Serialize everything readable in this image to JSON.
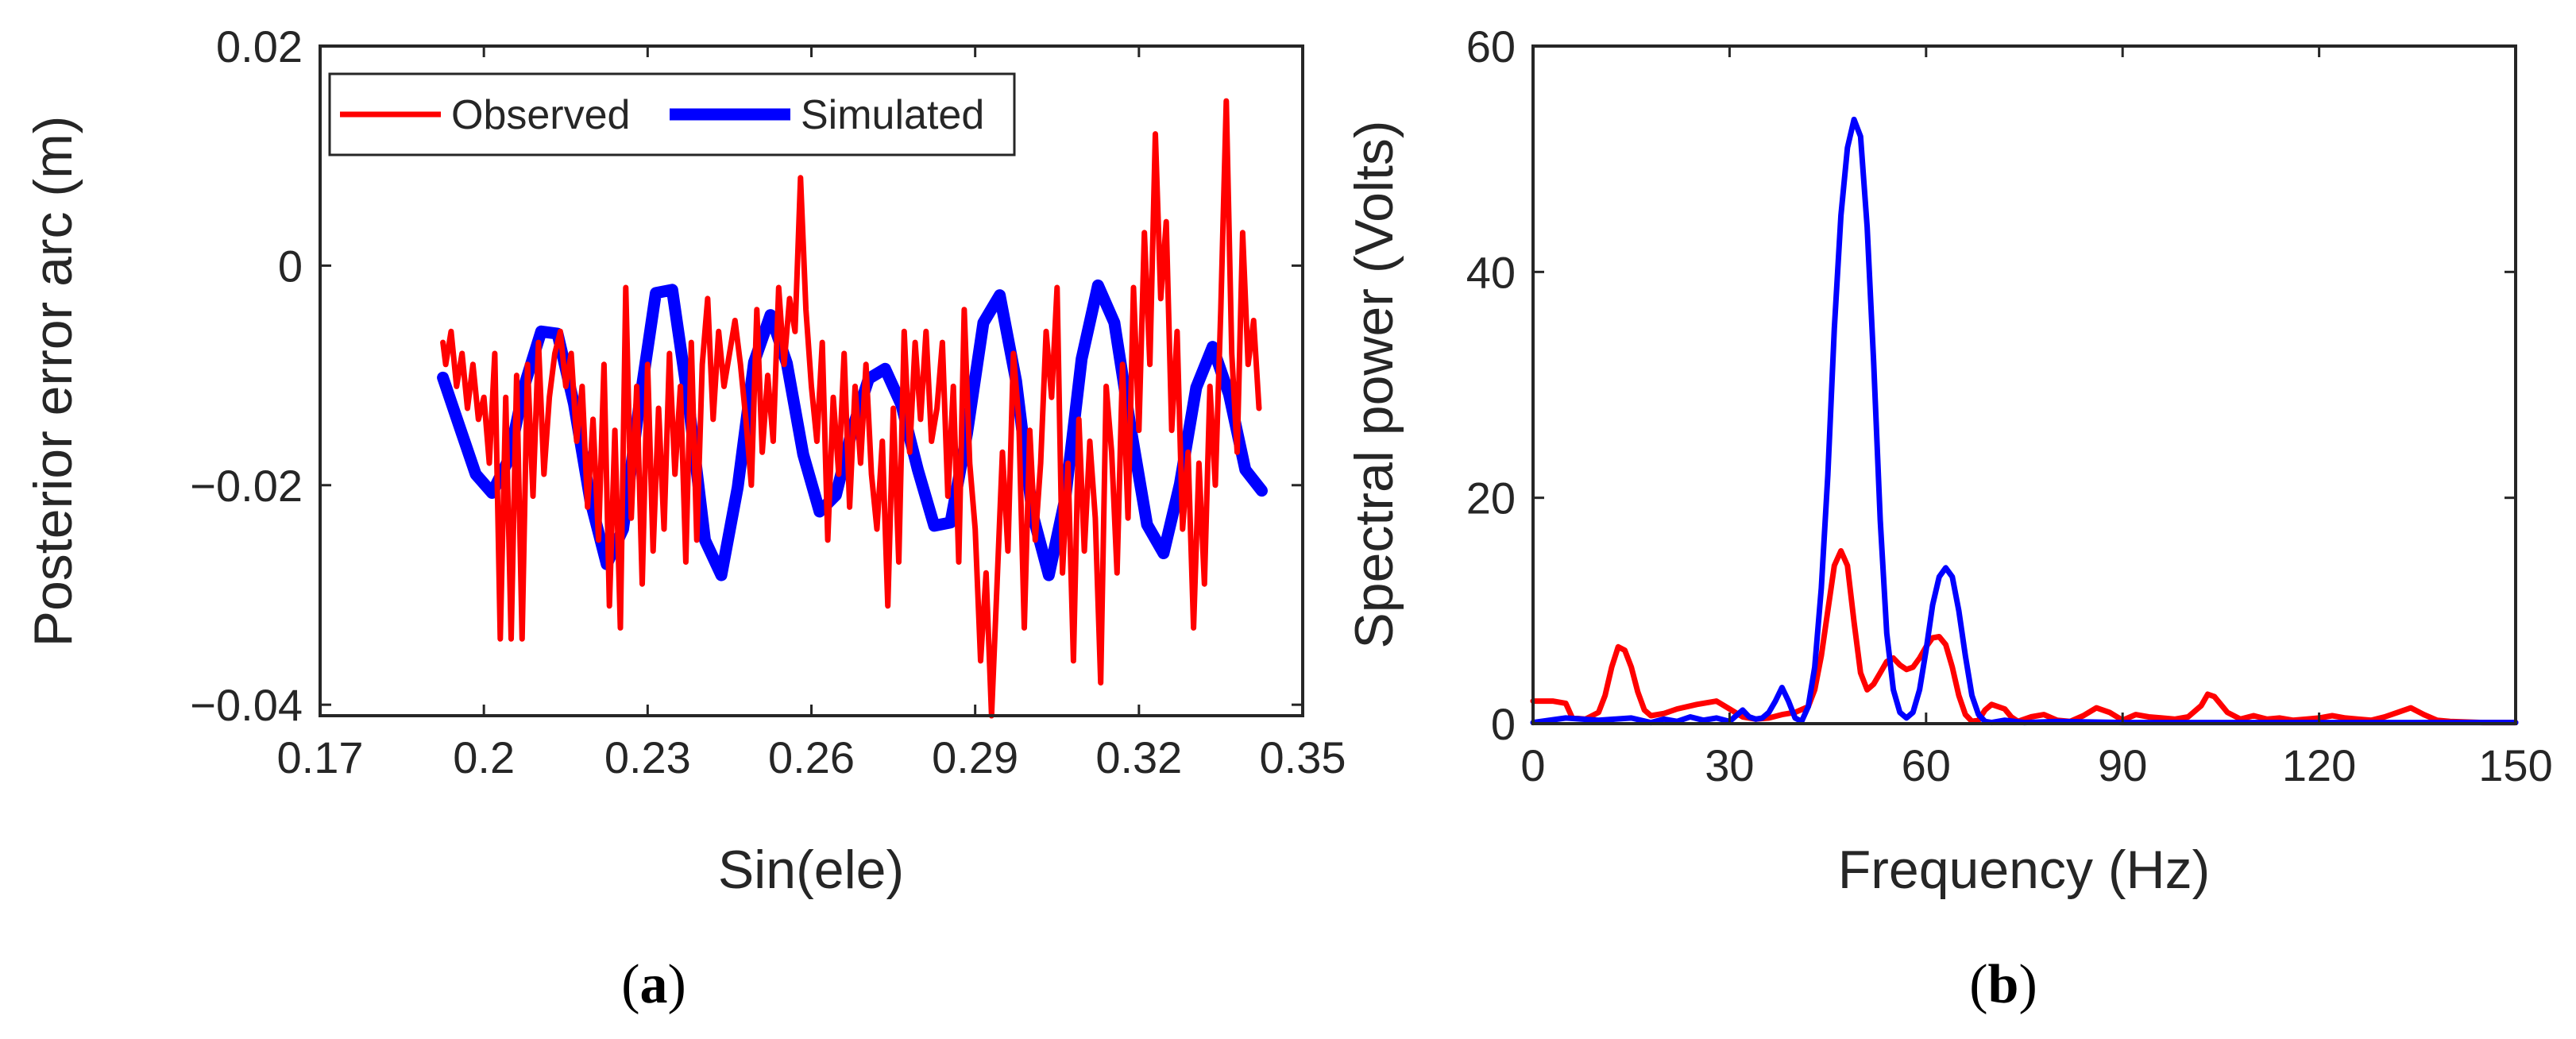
{
  "chart_data": [
    {
      "type": "line",
      "panel_label": {
        "open": "(",
        "letter": "a",
        "close": ")"
      },
      "xlabel": "Sin(ele)",
      "ylabel": "Posterior error arc (m)",
      "xlim": [
        0.17,
        0.35
      ],
      "ylim": [
        -0.041,
        0.02
      ],
      "xticks": [
        0.17,
        0.2,
        0.23,
        0.26,
        0.29,
        0.32,
        0.35
      ],
      "xtick_labels": [
        "0.17",
        "0.2",
        "0.23",
        "0.26",
        "0.29",
        "0.32",
        "0.35"
      ],
      "yticks": [
        -0.04,
        -0.02,
        0,
        0.02
      ],
      "ytick_labels": [
        "−0.04",
        "−0.02",
        "0",
        "0.02"
      ],
      "grid": false,
      "legend": {
        "location": "top-left",
        "orientation": "horizontal"
      },
      "series": [
        {
          "name": "Observed",
          "color": "#ff0000",
          "x": [
            0.1925,
            0.193,
            0.194,
            0.195,
            0.196,
            0.197,
            0.198,
            0.199,
            0.2,
            0.201,
            0.202,
            0.203,
            0.204,
            0.205,
            0.206,
            0.207,
            0.208,
            0.209,
            0.21,
            0.211,
            0.212,
            0.213,
            0.214,
            0.215,
            0.216,
            0.217,
            0.218,
            0.219,
            0.22,
            0.221,
            0.222,
            0.223,
            0.224,
            0.225,
            0.226,
            0.227,
            0.228,
            0.229,
            0.23,
            0.231,
            0.232,
            0.233,
            0.234,
            0.235,
            0.236,
            0.237,
            0.238,
            0.239,
            0.24,
            0.241,
            0.242,
            0.243,
            0.244,
            0.245,
            0.246,
            0.247,
            0.248,
            0.249,
            0.25,
            0.251,
            0.252,
            0.253,
            0.254,
            0.255,
            0.256,
            0.257,
            0.258,
            0.259,
            0.26,
            0.261,
            0.262,
            0.263,
            0.264,
            0.265,
            0.266,
            0.267,
            0.268,
            0.269,
            0.27,
            0.271,
            0.272,
            0.273,
            0.274,
            0.275,
            0.276,
            0.277,
            0.278,
            0.279,
            0.28,
            0.281,
            0.282,
            0.283,
            0.284,
            0.285,
            0.286,
            0.287,
            0.288,
            0.289,
            0.29,
            0.291,
            0.292,
            0.293,
            0.294,
            0.295,
            0.296,
            0.297,
            0.298,
            0.299,
            0.3,
            0.301,
            0.302,
            0.303,
            0.304,
            0.305,
            0.306,
            0.307,
            0.308,
            0.309,
            0.31,
            0.311,
            0.312,
            0.313,
            0.314,
            0.315,
            0.316,
            0.317,
            0.318,
            0.319,
            0.32,
            0.321,
            0.322,
            0.323,
            0.324,
            0.325,
            0.326,
            0.327,
            0.328,
            0.329,
            0.33,
            0.331,
            0.332,
            0.333,
            0.334,
            0.335,
            0.336,
            0.337,
            0.338,
            0.339,
            0.34,
            0.341,
            0.342
          ],
          "y": [
            -0.007,
            -0.009,
            -0.006,
            -0.011,
            -0.008,
            -0.013,
            -0.009,
            -0.014,
            -0.012,
            -0.018,
            -0.008,
            -0.034,
            -0.012,
            -0.034,
            -0.01,
            -0.034,
            -0.009,
            -0.021,
            -0.007,
            -0.019,
            -0.012,
            -0.008,
            -0.006,
            -0.011,
            -0.008,
            -0.016,
            -0.011,
            -0.022,
            -0.014,
            -0.025,
            -0.009,
            -0.031,
            -0.015,
            -0.033,
            -0.002,
            -0.023,
            -0.011,
            -0.029,
            -0.009,
            -0.026,
            -0.013,
            -0.024,
            -0.008,
            -0.019,
            -0.011,
            -0.027,
            -0.007,
            -0.025,
            -0.009,
            -0.003,
            -0.014,
            -0.006,
            -0.011,
            -0.008,
            -0.005,
            -0.009,
            -0.014,
            -0.02,
            -0.004,
            -0.017,
            -0.01,
            -0.016,
            -0.002,
            -0.009,
            -0.003,
            -0.006,
            0.008,
            -0.004,
            -0.011,
            -0.016,
            -0.007,
            -0.025,
            -0.012,
            -0.019,
            -0.008,
            -0.022,
            -0.011,
            -0.018,
            -0.009,
            -0.019,
            -0.024,
            -0.016,
            -0.031,
            -0.013,
            -0.027,
            -0.006,
            -0.017,
            -0.007,
            -0.014,
            -0.006,
            -0.016,
            -0.013,
            -0.007,
            -0.021,
            -0.011,
            -0.027,
            -0.004,
            -0.018,
            -0.024,
            -0.036,
            -0.028,
            -0.041,
            -0.029,
            -0.017,
            -0.026,
            -0.008,
            -0.014,
            -0.033,
            -0.015,
            -0.025,
            -0.018,
            -0.006,
            -0.012,
            -0.002,
            -0.028,
            -0.018,
            -0.036,
            -0.014,
            -0.026,
            -0.016,
            -0.023,
            -0.038,
            -0.011,
            -0.017,
            -0.028,
            -0.009,
            -0.023,
            -0.002,
            -0.015,
            0.003,
            -0.009,
            0.012,
            -0.003,
            0.004,
            -0.015,
            -0.006,
            -0.024,
            -0.017,
            -0.033,
            -0.018,
            -0.029,
            -0.011,
            -0.02,
            -0.004,
            0.015,
            -0.008,
            -0.017,
            0.003,
            -0.009,
            -0.005,
            -0.013
          ]
        },
        {
          "name": "Simulated",
          "color": "#0000ff",
          "x": [
            0.1925,
            0.1955,
            0.1985,
            0.2015,
            0.2045,
            0.2075,
            0.2105,
            0.2135,
            0.2165,
            0.2195,
            0.2225,
            0.2255,
            0.2285,
            0.2315,
            0.2345,
            0.2375,
            0.2405,
            0.2435,
            0.2465,
            0.2495,
            0.2525,
            0.2555,
            0.2585,
            0.2615,
            0.2645,
            0.2675,
            0.2705,
            0.2735,
            0.2765,
            0.2795,
            0.2825,
            0.2855,
            0.2885,
            0.2915,
            0.2945,
            0.2975,
            0.3005,
            0.3035,
            0.3065,
            0.3095,
            0.3125,
            0.3155,
            0.3185,
            0.3215,
            0.3245,
            0.3275,
            0.3305,
            0.3335,
            0.3365,
            0.3395,
            0.3425
          ],
          "y": [
            -0.0102,
            -0.0146,
            -0.019,
            -0.0207,
            -0.0177,
            -0.0108,
            -0.006,
            -0.0062,
            -0.0126,
            -0.0214,
            -0.0272,
            -0.024,
            -0.0126,
            -0.0025,
            -0.0022,
            -0.0125,
            -0.025,
            -0.0282,
            -0.0202,
            -0.0088,
            -0.0045,
            -0.0089,
            -0.0172,
            -0.0224,
            -0.0209,
            -0.0149,
            -0.0103,
            -0.0094,
            -0.0127,
            -0.0186,
            -0.0237,
            -0.0234,
            -0.0153,
            -0.0052,
            -0.0027,
            -0.0105,
            -0.0226,
            -0.0282,
            -0.0212,
            -0.0085,
            -0.0018,
            -0.0052,
            -0.0148,
            -0.0236,
            -0.0262,
            -0.0199,
            -0.0111,
            -0.0074,
            -0.0117,
            -0.0186,
            -0.0205
          ]
        }
      ]
    },
    {
      "type": "line",
      "panel_label": {
        "open": "(",
        "letter": "b",
        "close": ")"
      },
      "xlabel": "Frequency (Hz)",
      "ylabel": "Spectral power (Volts)",
      "xlim": [
        0,
        150
      ],
      "ylim": [
        0,
        60
      ],
      "xticks": [
        0,
        30,
        60,
        90,
        120,
        150
      ],
      "xtick_labels": [
        "0",
        "30",
        "60",
        "90",
        "120",
        "150"
      ],
      "yticks": [
        0,
        20,
        40,
        60
      ],
      "ytick_labels": [
        "0",
        "20",
        "40",
        "60"
      ],
      "grid": false,
      "series": [
        {
          "name": "Observed",
          "color": "#ff0000",
          "x": [
            0,
            3,
            5,
            6,
            8,
            10,
            11,
            12,
            13,
            14,
            15,
            16,
            17,
            18,
            20,
            22,
            25,
            28,
            30,
            32,
            34,
            36,
            38,
            40,
            42,
            43,
            44,
            45,
            46,
            47,
            48,
            49,
            50,
            51,
            52,
            53,
            54,
            55,
            56,
            57,
            58,
            59,
            60,
            61,
            62,
            63,
            64,
            65,
            66,
            67,
            68,
            69,
            70,
            72,
            73,
            74,
            76,
            78,
            80,
            82,
            84,
            86,
            88,
            90,
            92,
            94,
            96,
            98,
            100,
            102,
            103,
            104,
            106,
            108,
            110,
            112,
            114,
            116,
            118,
            120,
            122,
            124,
            126,
            128,
            130,
            132,
            134,
            136,
            138,
            140,
            145,
            150
          ],
          "y": [
            2,
            2,
            1.8,
            0.5,
            0.4,
            1,
            2.5,
            5,
            6.8,
            6.5,
            5,
            2.8,
            1.2,
            0.7,
            0.9,
            1.3,
            1.7,
            2,
            1.3,
            0.6,
            0.4,
            0.5,
            0.8,
            1,
            1.5,
            3,
            6,
            10,
            14,
            15.3,
            14,
            9,
            4.5,
            3,
            3.5,
            4.5,
            5.5,
            5.8,
            5.2,
            4.8,
            5,
            5.8,
            6.8,
            7.6,
            7.7,
            7,
            5,
            2.5,
            0.8,
            0.2,
            0.3,
            1.2,
            1.7,
            1.3,
            0.6,
            0.2,
            0.6,
            0.8,
            0.3,
            0.2,
            0.7,
            1.4,
            1,
            0.3,
            0.8,
            0.6,
            0.5,
            0.4,
            0.6,
            1.6,
            2.6,
            2.4,
            1,
            0.4,
            0.7,
            0.4,
            0.5,
            0.3,
            0.4,
            0.5,
            0.7,
            0.5,
            0.4,
            0.3,
            0.6,
            1,
            1.4,
            0.8,
            0.3,
            0.2,
            0.1,
            0.1
          ]
        },
        {
          "name": "Simulated",
          "color": "#0000ff",
          "x": [
            0,
            5,
            10,
            15,
            18,
            20,
            22,
            24,
            26,
            28,
            30,
            32,
            33,
            34,
            35,
            36,
            37,
            38,
            39,
            40,
            41,
            42,
            43,
            44,
            45,
            46,
            47,
            48,
            49,
            50,
            51,
            52,
            53,
            54,
            55,
            56,
            57,
            58,
            59,
            60,
            61,
            62,
            63,
            64,
            65,
            66,
            67,
            68,
            69,
            70,
            72,
            75,
            80,
            90,
            100,
            110,
            120,
            130,
            140,
            150
          ],
          "y": [
            0.1,
            0.5,
            0.3,
            0.5,
            0.1,
            0.4,
            0.2,
            0.6,
            0.3,
            0.5,
            0.2,
            1.2,
            0.6,
            0.4,
            0.5,
            1,
            2,
            3.2,
            2,
            0.5,
            0.2,
            1.5,
            5,
            12,
            22,
            35,
            45,
            51,
            53.5,
            52,
            44,
            32,
            18,
            8,
            3,
            1,
            0.5,
            1,
            3,
            6.5,
            10.5,
            13,
            13.8,
            13,
            10,
            6,
            2.5,
            0.8,
            0.2,
            0.1,
            0.3,
            0.1,
            0.2,
            0.1,
            0.1,
            0.1,
            0.1,
            0.1,
            0.1,
            0.1
          ]
        }
      ]
    }
  ]
}
